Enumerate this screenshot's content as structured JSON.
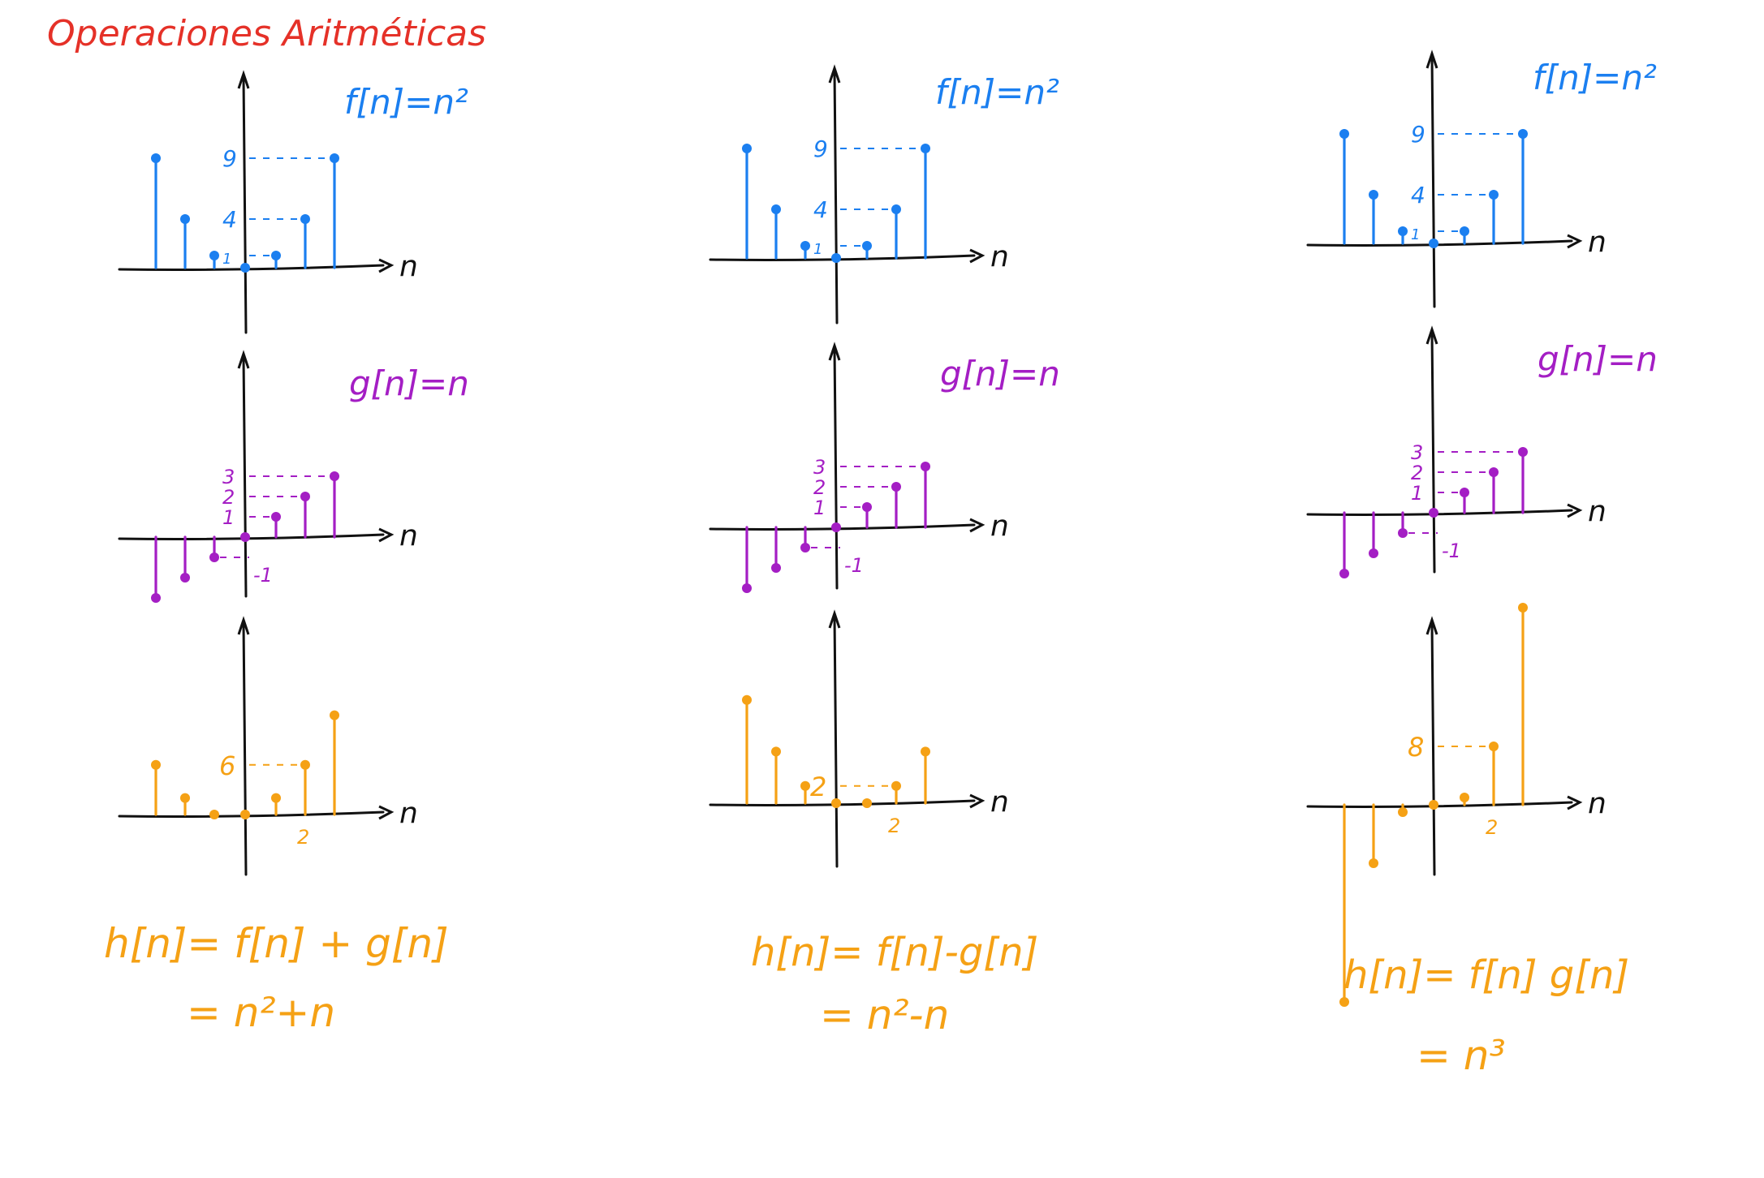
{
  "title": "Operaciones Aritméticas",
  "colors": {
    "title": "#e53128",
    "f": "#1b7ff0",
    "g": "#a41ec4",
    "h": "#f5a115",
    "axis": "#111111"
  },
  "axis_label": "n",
  "columns": [
    {
      "f_label": "f[n]=n²",
      "g_label": "g[n]=n",
      "h_formula_1": "h[n]= f[n] + g[n]",
      "h_formula_2": "= n²+n",
      "f_ticks": [
        "9",
        "4",
        "1"
      ],
      "g_ticks": [
        "3",
        "2",
        "1",
        "-1"
      ],
      "h_ticks": [
        "6"
      ],
      "h_xtick": "2"
    },
    {
      "f_label": "f[n]=n²",
      "g_label": "g[n]=n",
      "h_formula_1": "h[n]= f[n]-g[n]",
      "h_formula_2": "= n²-n",
      "f_ticks": [
        "9",
        "4",
        "1"
      ],
      "g_ticks": [
        "3",
        "2",
        "1",
        "-1"
      ],
      "h_ticks": [
        "2"
      ],
      "h_xtick": "2"
    },
    {
      "f_label": "f[n]=n²",
      "g_label": "g[n]=n",
      "h_formula_1": "h[n]= f[n] g[n]",
      "h_formula_2": "= n³",
      "f_ticks": [
        "9",
        "4",
        "1"
      ],
      "g_ticks": [
        "3",
        "2",
        "1",
        "-1"
      ],
      "h_ticks": [
        "8"
      ],
      "h_xtick": "2"
    }
  ],
  "chart_data": [
    {
      "type": "scatter",
      "name": "f[n]=n²",
      "x": [
        -3,
        -2,
        -1,
        0,
        1,
        2,
        3
      ],
      "values": [
        9,
        4,
        1,
        0,
        1,
        4,
        9
      ]
    },
    {
      "type": "scatter",
      "name": "g[n]=n",
      "x": [
        -3,
        -2,
        -1,
        0,
        1,
        2,
        3
      ],
      "values": [
        -3,
        -2,
        -1,
        0,
        1,
        2,
        3
      ]
    },
    {
      "type": "scatter",
      "name": "h[n]= f[n] + g[n]",
      "x": [
        -3,
        -2,
        -1,
        0,
        1,
        2,
        3
      ],
      "values": [
        6,
        2,
        0,
        0,
        2,
        6,
        12
      ]
    },
    {
      "type": "scatter",
      "name": "h[n]= f[n]-g[n]",
      "x": [
        -3,
        -2,
        -1,
        0,
        1,
        2,
        3
      ],
      "values": [
        12,
        6,
        2,
        0,
        0,
        2,
        6
      ]
    },
    {
      "type": "scatter",
      "name": "h[n]= f[n] g[n]",
      "x": [
        -3,
        -2,
        -1,
        0,
        1,
        2,
        3
      ],
      "values": [
        -27,
        -8,
        -1,
        0,
        1,
        8,
        27
      ]
    }
  ]
}
